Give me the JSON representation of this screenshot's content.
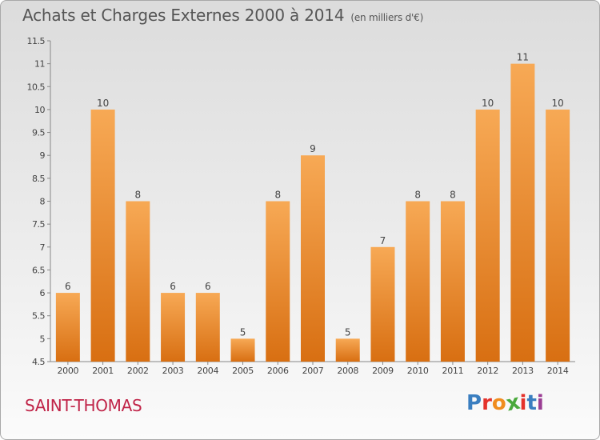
{
  "header": {
    "title": "Achats et Charges Externes 2000 à 2014",
    "units": "(en milliers d'€)"
  },
  "footer": {
    "commune": "SAINT-THOMAS",
    "logo_text": "Proxiti"
  },
  "colors": {
    "bar_light": "#f7a955",
    "bar_dark": "#d86f12",
    "commune": "#c02448",
    "logo_letters": [
      "#3a7ec0",
      "#e4322b",
      "#f08c1e",
      "#4aa93c",
      "#e4322b",
      "#3a7ec0",
      "#9a3d93"
    ]
  },
  "chart_data": {
    "type": "bar",
    "title": "Achats et Charges Externes 2000 à 2014",
    "subtitle": "(en milliers d'€)",
    "categories": [
      "2000",
      "2001",
      "2002",
      "2003",
      "2004",
      "2005",
      "2006",
      "2007",
      "2008",
      "2009",
      "2010",
      "2011",
      "2012",
      "2013",
      "2014"
    ],
    "values": [
      6,
      10,
      8,
      6,
      6,
      5,
      8,
      9,
      5,
      7,
      8,
      8,
      10,
      11,
      10
    ],
    "ylim": [
      4.5,
      11.5
    ],
    "yticks": [
      "4.5",
      "5",
      "5.5",
      "6",
      "6.5",
      "7",
      "7.5",
      "8",
      "8.5",
      "9",
      "9.5",
      "10",
      "10.5",
      "11",
      "11.5"
    ],
    "xlabel": "",
    "ylabel": "",
    "grid": false,
    "data_labels": true
  }
}
